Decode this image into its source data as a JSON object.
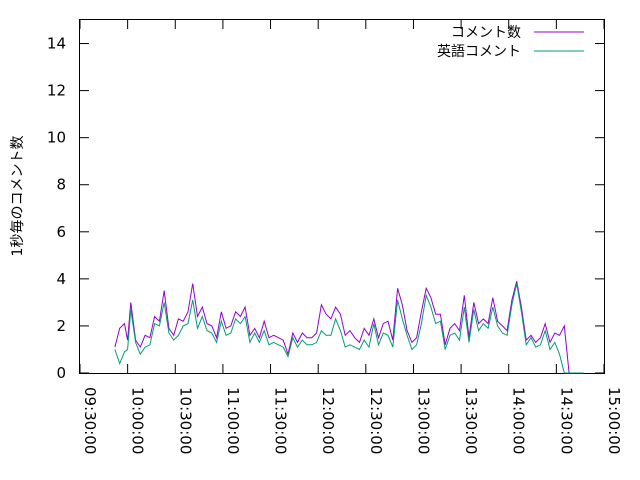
{
  "chart_data": {
    "type": "line",
    "title": "",
    "xlabel": "",
    "ylabel": "1秒毎のコメント数",
    "ylim": [
      0,
      15
    ],
    "yticks": [
      0,
      2,
      4,
      6,
      8,
      10,
      12,
      14
    ],
    "ytick_labels": [
      "0",
      "2",
      "4",
      "6",
      "8",
      "10",
      "12",
      "14"
    ],
    "xlim": [
      "09:30:00",
      "15:00:00"
    ],
    "xticks": [
      "09:30:00",
      "10:00:00",
      "10:30:00",
      "11:00:00",
      "11:30:00",
      "12:00:00",
      "12:30:00",
      "13:00:00",
      "13:30:00",
      "14:00:00",
      "14:30:00",
      "15:00:00"
    ],
    "xtick_labels": [
      "09:30:00",
      "10:00:00",
      "10:30:00",
      "11:00:00",
      "11:30:00",
      "12:00:00",
      "12:30:00",
      "13:00:00",
      "13:30:00",
      "14:00:00",
      "14:30:00",
      "15:00:00"
    ],
    "grid": false,
    "legend_position": "top-right",
    "series": [
      {
        "name": "コメント数",
        "color": "#9400d3",
        "x": [
          "09:52:00",
          "09:55:00",
          "09:58:00",
          "10:00:00",
          "10:02:00",
          "10:05:00",
          "10:08:00",
          "10:11:00",
          "10:14:00",
          "10:17:00",
          "10:20:00",
          "10:23:00",
          "10:26:00",
          "10:29:00",
          "10:32:00",
          "10:35:00",
          "10:38:00",
          "10:41:00",
          "10:44:00",
          "10:47:00",
          "10:50:00",
          "10:53:00",
          "10:56:00",
          "10:59:00",
          "11:02:00",
          "11:05:00",
          "11:08:00",
          "11:11:00",
          "11:14:00",
          "11:17:00",
          "11:20:00",
          "11:23:00",
          "11:26:00",
          "11:29:00",
          "11:32:00",
          "11:35:00",
          "11:38:00",
          "11:41:00",
          "11:44:00",
          "11:47:00",
          "11:50:00",
          "11:53:00",
          "11:56:00",
          "11:59:00",
          "12:02:00",
          "12:05:00",
          "12:08:00",
          "12:11:00",
          "12:14:00",
          "12:17:00",
          "12:20:00",
          "12:23:00",
          "12:26:00",
          "12:29:00",
          "12:32:00",
          "12:35:00",
          "12:38:00",
          "12:41:00",
          "12:44:00",
          "12:47:00",
          "12:50:00",
          "12:53:00",
          "12:56:00",
          "12:59:00",
          "13:02:00",
          "13:05:00",
          "13:08:00",
          "13:11:00",
          "13:14:00",
          "13:17:00",
          "13:20:00",
          "13:23:00",
          "13:26:00",
          "13:29:00",
          "13:32:00",
          "13:35:00",
          "13:38:00",
          "13:41:00",
          "13:44:00",
          "13:47:00",
          "13:50:00",
          "13:53:00",
          "13:56:00",
          "13:59:00",
          "14:02:00",
          "14:05:00",
          "14:08:00",
          "14:11:00",
          "14:14:00",
          "14:17:00",
          "14:20:00",
          "14:23:00",
          "14:26:00",
          "14:29:00",
          "14:32:00",
          "14:35:00",
          "14:38:00",
          "14:41:00",
          "14:44:00",
          "14:47:00"
        ],
        "values": [
          1.1,
          1.9,
          2.1,
          1.4,
          3.0,
          1.4,
          1.1,
          1.6,
          1.5,
          2.4,
          2.2,
          3.5,
          1.9,
          1.6,
          2.3,
          2.2,
          2.6,
          3.8,
          2.4,
          2.8,
          2.1,
          2.0,
          1.5,
          2.6,
          1.9,
          2.0,
          2.6,
          2.4,
          2.8,
          1.6,
          1.9,
          1.5,
          2.2,
          1.5,
          1.6,
          1.5,
          1.4,
          0.8,
          1.7,
          1.3,
          1.7,
          1.5,
          1.5,
          1.7,
          2.9,
          2.5,
          2.3,
          2.8,
          2.5,
          1.6,
          1.8,
          1.5,
          1.3,
          1.9,
          1.6,
          2.3,
          1.5,
          2.1,
          2.2,
          1.4,
          3.6,
          2.9,
          1.8,
          1.3,
          1.5,
          2.6,
          3.6,
          3.2,
          2.5,
          2.5,
          1.2,
          1.9,
          2.1,
          1.8,
          3.3,
          1.5,
          3.0,
          2.1,
          2.3,
          2.1,
          3.2,
          2.2,
          2.0,
          1.8,
          3.1,
          3.9,
          2.8,
          1.4,
          1.6,
          1.3,
          1.5,
          2.1,
          1.3,
          1.7,
          1.6,
          2.0,
          0,
          0,
          0,
          0
        ]
      },
      {
        "name": "英語コメント",
        "color": "#009e73",
        "x": [
          "09:52:00",
          "09:55:00",
          "09:58:00",
          "10:00:00",
          "10:02:00",
          "10:05:00",
          "10:08:00",
          "10:11:00",
          "10:14:00",
          "10:17:00",
          "10:20:00",
          "10:23:00",
          "10:26:00",
          "10:29:00",
          "10:32:00",
          "10:35:00",
          "10:38:00",
          "10:41:00",
          "10:44:00",
          "10:47:00",
          "10:50:00",
          "10:53:00",
          "10:56:00",
          "10:59:00",
          "11:02:00",
          "11:05:00",
          "11:08:00",
          "11:11:00",
          "11:14:00",
          "11:17:00",
          "11:20:00",
          "11:23:00",
          "11:26:00",
          "11:29:00",
          "11:32:00",
          "11:35:00",
          "11:38:00",
          "11:41:00",
          "11:44:00",
          "11:47:00",
          "11:50:00",
          "11:53:00",
          "11:56:00",
          "11:59:00",
          "12:02:00",
          "12:05:00",
          "12:08:00",
          "12:11:00",
          "12:14:00",
          "12:17:00",
          "12:20:00",
          "12:23:00",
          "12:26:00",
          "12:29:00",
          "12:32:00",
          "12:35:00",
          "12:38:00",
          "12:41:00",
          "12:44:00",
          "12:47:00",
          "12:50:00",
          "12:53:00",
          "12:56:00",
          "12:59:00",
          "13:02:00",
          "13:05:00",
          "13:08:00",
          "13:11:00",
          "13:14:00",
          "13:17:00",
          "13:20:00",
          "13:23:00",
          "13:26:00",
          "13:29:00",
          "13:32:00",
          "13:35:00",
          "13:38:00",
          "13:41:00",
          "13:44:00",
          "13:47:00",
          "13:50:00",
          "13:53:00",
          "13:56:00",
          "13:59:00",
          "14:02:00",
          "14:05:00",
          "14:08:00",
          "14:11:00",
          "14:14:00",
          "14:17:00",
          "14:20:00",
          "14:23:00",
          "14:26:00",
          "14:29:00",
          "14:32:00",
          "14:35:00",
          "14:38:00",
          "14:41:00",
          "14:44:00",
          "14:47:00"
        ],
        "values": [
          1.0,
          0.4,
          0.9,
          1.0,
          2.7,
          1.3,
          0.8,
          1.1,
          1.2,
          2.1,
          2.0,
          3.0,
          1.7,
          1.4,
          1.6,
          2.0,
          2.1,
          3.1,
          1.9,
          2.4,
          1.8,
          1.7,
          1.3,
          2.2,
          1.6,
          1.7,
          2.3,
          2.1,
          2.4,
          1.3,
          1.7,
          1.3,
          1.8,
          1.2,
          1.3,
          1.2,
          1.1,
          0.7,
          1.5,
          1.1,
          1.4,
          1.2,
          1.2,
          1.3,
          1.8,
          1.6,
          1.6,
          2.3,
          1.8,
          1.1,
          1.2,
          1.1,
          1.0,
          1.4,
          1.1,
          2.1,
          1.2,
          1.7,
          1.6,
          1.1,
          3.1,
          2.3,
          1.6,
          1.0,
          1.2,
          2.1,
          3.3,
          2.8,
          2.1,
          2.2,
          1.0,
          1.6,
          1.7,
          1.4,
          2.8,
          1.3,
          2.7,
          1.8,
          2.1,
          1.9,
          2.8,
          2.0,
          1.7,
          1.6,
          2.9,
          3.8,
          2.6,
          1.2,
          1.5,
          1.1,
          1.2,
          1.8,
          1.0,
          1.3,
          0.8,
          0.0,
          0,
          0,
          0,
          0
        ]
      }
    ]
  }
}
